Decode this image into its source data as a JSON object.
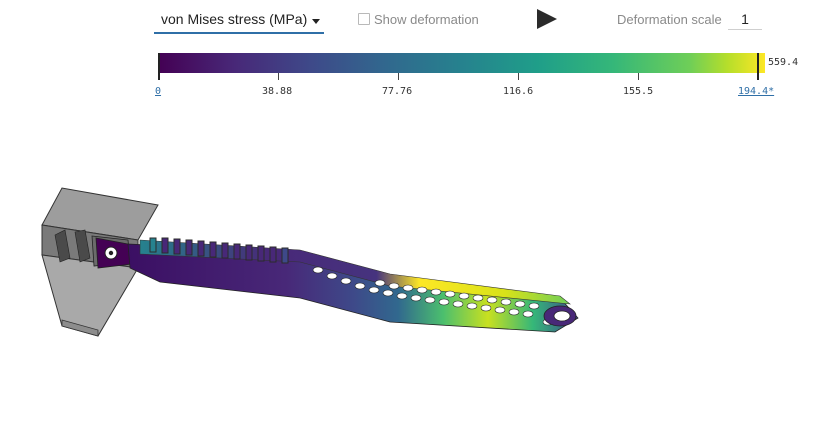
{
  "toolbar": {
    "result_type": "von Mises stress (MPa)",
    "show_deformation_label": "Show deformation",
    "show_deformation_checked": false,
    "deformation_scale_label": "Deformation scale",
    "deformation_scale_value": "1",
    "play_icon": "play-icon"
  },
  "colorbar": {
    "colormap": "viridis",
    "min_label": "0",
    "ticks": [
      "38.88",
      "77.76",
      "116.6",
      "155.5"
    ],
    "max_label": "194.4*",
    "overflow_max": "559.4",
    "colors": [
      "#440154",
      "#3e4989",
      "#26828e",
      "#35b779",
      "#fde725"
    ]
  },
  "model": {
    "description_icon": "fea-stress-result-icon",
    "base_color": "#8d8d8d"
  }
}
